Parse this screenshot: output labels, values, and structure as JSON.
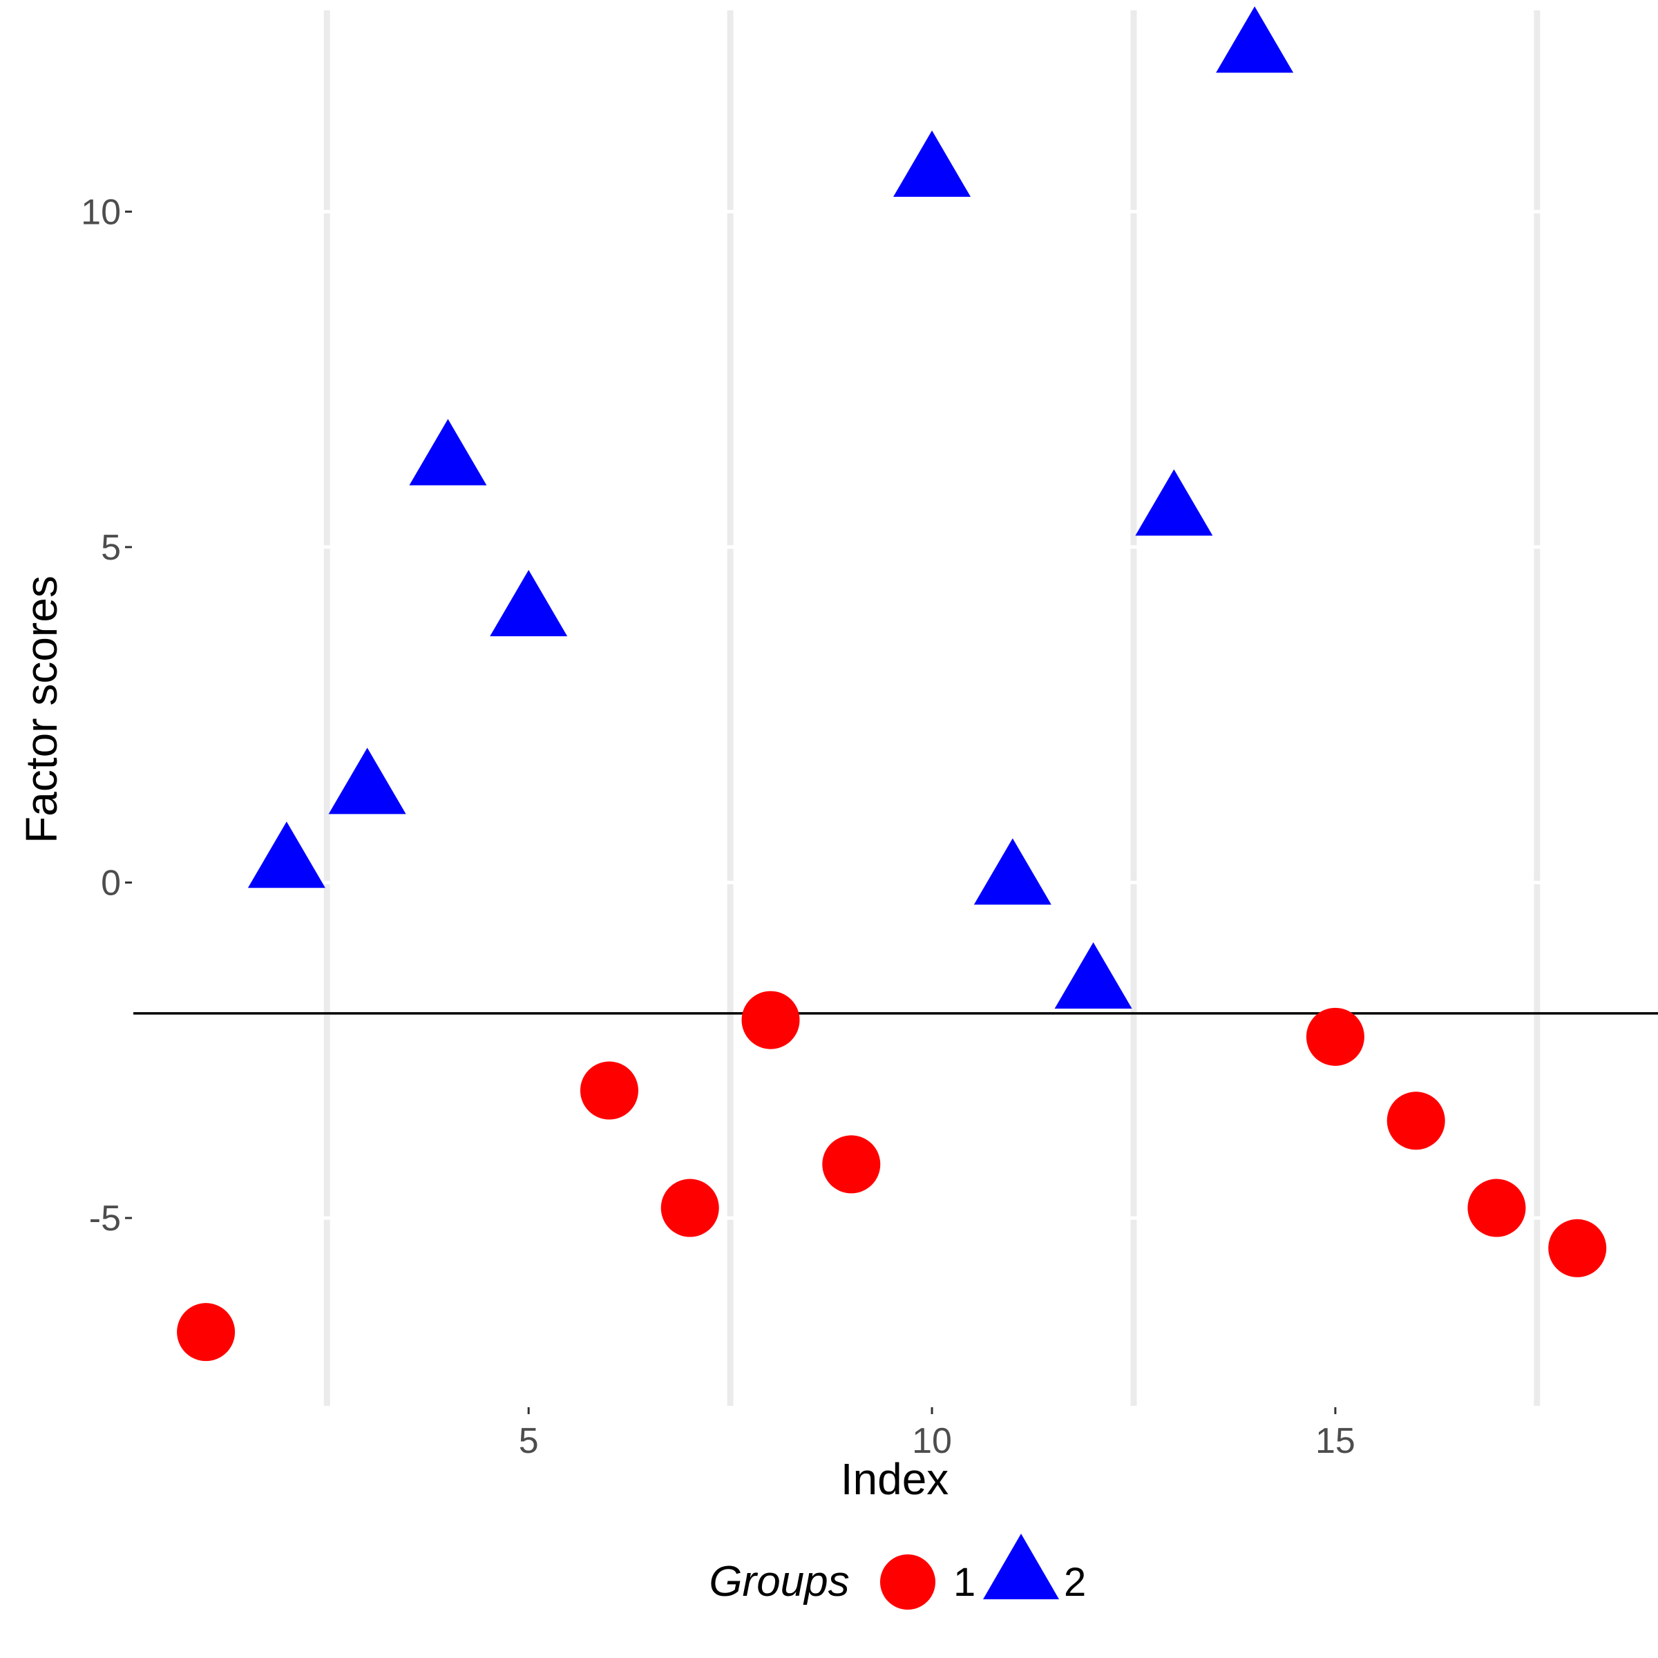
{
  "chart_data": {
    "type": "scatter",
    "xlabel": "Index",
    "ylabel": "Factor scores",
    "xlim": [
      0.1,
      19.0
    ],
    "ylim": [
      -7.8,
      13.0
    ],
    "x_ticks": [
      5,
      10,
      15
    ],
    "y_ticks": [
      -5,
      0,
      5,
      10
    ],
    "x_tick_labels": [
      "5",
      "10",
      "15"
    ],
    "y_tick_labels": [
      "-5",
      "0",
      "5",
      "10"
    ],
    "grid": "vertical gridlines at x = 2.5, 7.5, 12.5, 17.5",
    "hline_y": -1.95,
    "legend": {
      "title": "Groups",
      "position": "bottom"
    },
    "series": [
      {
        "name": "1",
        "shape": "circle",
        "color": "#ff0000",
        "points": [
          {
            "x": 1,
            "y": -6.7
          },
          {
            "x": 6,
            "y": -3.1
          },
          {
            "x": 7,
            "y": -4.85
          },
          {
            "x": 8,
            "y": -2.05
          },
          {
            "x": 9,
            "y": -4.2
          },
          {
            "x": 15,
            "y": -2.3
          },
          {
            "x": 16,
            "y": -3.55
          },
          {
            "x": 17,
            "y": -4.85
          },
          {
            "x": 18,
            "y": -5.45
          }
        ]
      },
      {
        "name": "2",
        "shape": "triangle",
        "color": "#0000ff",
        "points": [
          {
            "x": 2,
            "y": 0.25
          },
          {
            "x": 3,
            "y": 1.35
          },
          {
            "x": 4,
            "y": 6.25
          },
          {
            "x": 5,
            "y": 4.0
          },
          {
            "x": 10,
            "y": 10.55
          },
          {
            "x": 11,
            "y": 0.0
          },
          {
            "x": 12,
            "y": -1.55
          },
          {
            "x": 13,
            "y": 5.5
          },
          {
            "x": 14,
            "y": 12.4
          }
        ]
      }
    ]
  }
}
